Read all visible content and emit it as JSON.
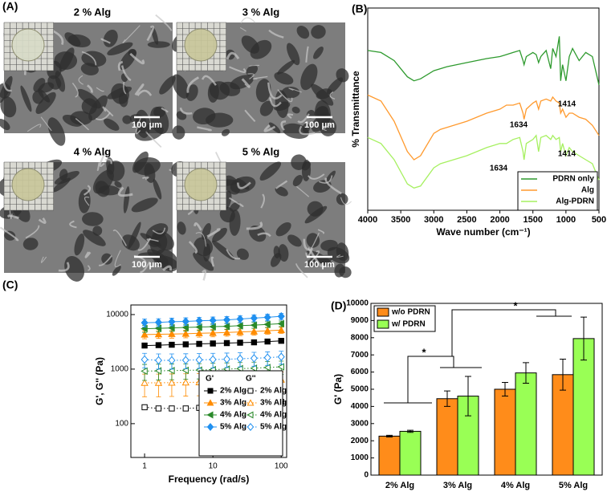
{
  "panel_labels": [
    "(A)",
    "(B)",
    "(C)",
    "(D)"
  ],
  "sem_images": [
    {
      "label": "2 % Alg",
      "scale_bar": "100 μm"
    },
    {
      "label": "3 % Alg",
      "scale_bar": "100 μm"
    },
    {
      "label": "4 % Alg",
      "scale_bar": "100 μm"
    },
    {
      "label": "5 % Alg",
      "scale_bar": "100 μm"
    }
  ],
  "chart_data": [
    {
      "type": "line",
      "x_label": "Wave number (cm⁻¹)",
      "y_label": "% Transmittance",
      "x": [
        4000,
        3800,
        3600,
        3400,
        3300,
        3200,
        3000,
        2900,
        2800,
        2500,
        2200,
        2000,
        1900,
        1800,
        1700,
        1650,
        1634,
        1600,
        1500,
        1450,
        1414,
        1380,
        1300,
        1230,
        1200,
        1150,
        1100,
        1080,
        1050,
        1000,
        950,
        900,
        800,
        700,
        600,
        500
      ],
      "series": [
        {
          "name": "PDRN only",
          "color": "#2e9a2e",
          "values": [
            79,
            78,
            74,
            66,
            64,
            65,
            69,
            70,
            71,
            73,
            75,
            76,
            77,
            78,
            79,
            74,
            72,
            76,
            78,
            77,
            73,
            76,
            79,
            70,
            80,
            76,
            86,
            64,
            72,
            64,
            76,
            80,
            74,
            78,
            76,
            62
          ]
        },
        {
          "name": "Alg",
          "color": "#ff9a2e",
          "values": [
            57,
            54,
            44,
            29,
            25,
            27,
            38,
            40,
            41,
            44,
            48,
            50,
            52,
            52,
            53,
            48,
            45,
            50,
            53,
            54,
            50,
            54,
            55,
            54,
            56,
            54,
            53,
            48,
            50,
            46,
            48,
            48,
            46,
            45,
            42,
            37
          ]
        },
        {
          "name": "Alg-PDRN",
          "color": "#a6f060",
          "values": [
            36,
            33,
            25,
            13,
            11,
            12,
            21,
            23,
            24,
            27,
            31,
            33,
            33,
            35,
            36,
            29,
            25,
            33,
            35,
            37,
            29,
            36,
            37,
            35,
            37,
            35,
            36,
            29,
            33,
            27,
            31,
            29,
            27,
            25,
            23,
            15
          ]
        }
      ],
      "xlim": [
        4000,
        500
      ],
      "ylim": [
        0,
        100
      ],
      "xticks": [
        4000,
        3500,
        3000,
        2500,
        2000,
        1500,
        1000,
        500
      ],
      "annotations": [
        "1634",
        "1414",
        "1634",
        "1414"
      ],
      "legend": "lower right"
    },
    {
      "type": "scatter",
      "x_label": "Frequency (rad/s)",
      "y_label": "G', G'' (Pa)",
      "log_x": true,
      "log_y": true,
      "x": [
        1,
        1.6,
        2.5,
        4,
        6.3,
        10,
        16,
        25,
        40,
        63,
        100
      ],
      "legend_titles": [
        "G'",
        "G''"
      ],
      "series": [
        {
          "name": "2% Alg",
          "color": "#000000",
          "marker": "square",
          "filled": true,
          "values": [
            2700,
            2750,
            2800,
            2850,
            2900,
            2950,
            3000,
            3050,
            3100,
            3200,
            3300
          ],
          "errors": [
            150,
            150,
            150,
            150,
            150,
            150,
            150,
            150,
            150,
            150,
            150
          ]
        },
        {
          "name": "3% Alg",
          "color": "#ff8c00",
          "marker": "triangle",
          "filled": true,
          "values": [
            4300,
            4350,
            4400,
            4450,
            4550,
            4600,
            4700,
            4800,
            4900,
            5050,
            5200
          ],
          "errors": [
            700,
            700,
            700,
            700,
            700,
            700,
            700,
            700,
            700,
            700,
            700
          ]
        },
        {
          "name": "4% Alg",
          "color": "#2a8a2a",
          "marker": "left-triangle",
          "filled": true,
          "values": [
            5500,
            5600,
            5700,
            5800,
            5900,
            6000,
            6100,
            6250,
            6400,
            6600,
            6800
          ],
          "errors": [
            800,
            800,
            800,
            800,
            800,
            800,
            800,
            800,
            800,
            800,
            800
          ]
        },
        {
          "name": "5% Alg",
          "color": "#2090f0",
          "marker": "diamond",
          "filled": true,
          "values": [
            7100,
            7200,
            7400,
            7500,
            7700,
            7800,
            8000,
            8300,
            8600,
            8900,
            9300
          ],
          "errors": [
            1200,
            1200,
            1200,
            1200,
            1200,
            1200,
            1200,
            1200,
            1200,
            1200,
            1200
          ]
        },
        {
          "name": "2% Alg",
          "color": "#000000",
          "marker": "square",
          "filled": false,
          "values": [
            200,
            190,
            190,
            190,
            195,
            200,
            205,
            210,
            220,
            235,
            250
          ],
          "errors": [
            12,
            12,
            12,
            12,
            12,
            12,
            12,
            12,
            12,
            12,
            12
          ]
        },
        {
          "name": "3% Alg",
          "color": "#ff8c00",
          "marker": "triangle",
          "filled": false,
          "values": [
            560,
            560,
            565,
            570,
            575,
            580,
            590,
            600,
            610,
            620,
            640
          ],
          "errors": [
            250,
            250,
            250,
            250,
            250,
            250,
            250,
            250,
            250,
            250,
            250
          ]
        },
        {
          "name": "4% Alg",
          "color": "#2a8a2a",
          "marker": "left-triangle",
          "filled": false,
          "values": [
            920,
            930,
            940,
            950,
            960,
            980,
            1000,
            1020,
            1040,
            1070,
            1100
          ],
          "errors": [
            300,
            300,
            300,
            300,
            300,
            300,
            300,
            300,
            300,
            300,
            300
          ]
        },
        {
          "name": "5% Alg",
          "color": "#2090f0",
          "marker": "diamond",
          "filled": false,
          "values": [
            1500,
            1450,
            1450,
            1460,
            1480,
            1500,
            1520,
            1550,
            1580,
            1620,
            1680
          ],
          "errors": [
            450,
            450,
            450,
            450,
            450,
            450,
            450,
            450,
            450,
            450,
            450
          ]
        }
      ],
      "xlim": [
        0.63,
        120
      ],
      "ylim": [
        24,
        15000
      ],
      "xticks": [
        1,
        10,
        100
      ],
      "yticks": [
        100,
        1000,
        10000
      ],
      "legend": "lower right"
    },
    {
      "type": "bar",
      "y_label": "G' (Pa)",
      "categories": [
        "2% Alg",
        "3% Alg",
        "4% Alg",
        "5% Alg"
      ],
      "series": [
        {
          "name": "w/o PDRN",
          "color": "#ff8c1a",
          "values": [
            2270,
            4450,
            5000,
            5850
          ],
          "errors": [
            50,
            450,
            400,
            900
          ]
        },
        {
          "name": "w/ PDRN",
          "color": "#99ff55",
          "values": [
            2550,
            4600,
            5950,
            7950
          ],
          "errors": [
            60,
            1150,
            600,
            1250
          ]
        }
      ],
      "ylim": [
        0,
        10000
      ],
      "yticks": [
        0,
        1000,
        2000,
        3000,
        4000,
        5000,
        6000,
        7000,
        8000,
        9000,
        10000
      ],
      "annotations": [
        "*",
        "*"
      ],
      "legend": "upper left"
    }
  ]
}
